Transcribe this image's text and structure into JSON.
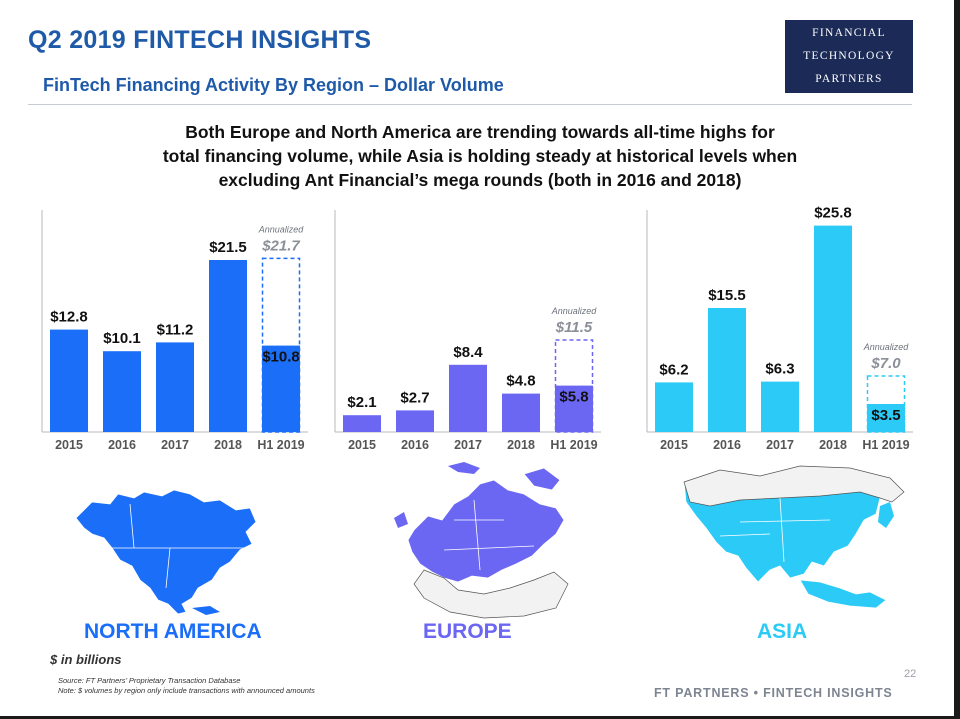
{
  "header": {
    "title": "Q2 2019 FINTECH INSIGHTS",
    "subtitle": "FinTech Financing Activity By Region – Dollar Volume",
    "logo_lines": [
      "FINANCIAL",
      "TECHNOLOGY",
      "PARTNERS"
    ]
  },
  "headline": {
    "line1": "Both Europe and North America are trending towards all-time highs for",
    "line2": "total financing volume, while Asia is holding steady at historical levels when",
    "line3": "excluding Ant Financial’s mega rounds (both in 2016 and 2018)"
  },
  "chart_data": [
    {
      "type": "bar",
      "region": "NORTH AMERICA",
      "color": "#1a6ef7",
      "categories": [
        "2015",
        "2016",
        "2017",
        "2018",
        "H1 2019"
      ],
      "values": [
        12.8,
        10.1,
        11.2,
        21.5,
        10.8
      ],
      "value_labels": [
        "$12.8",
        "$10.1",
        "$11.2",
        "$21.5",
        "$10.8"
      ],
      "annualized": {
        "label": "Annualized",
        "value": 21.7,
        "value_label": "$21.7"
      },
      "ylim": [
        0,
        26
      ]
    },
    {
      "type": "bar",
      "region": "EUROPE",
      "color": "#6b67f3",
      "categories": [
        "2015",
        "2016",
        "2017",
        "2018",
        "H1 2019"
      ],
      "values": [
        2.1,
        2.7,
        8.4,
        4.8,
        5.8
      ],
      "value_labels": [
        "$2.1",
        "$2.7",
        "$8.4",
        "$4.8",
        "$5.8"
      ],
      "annualized": {
        "label": "Annualized",
        "value": 11.5,
        "value_label": "$11.5"
      },
      "ylim": [
        0,
        26
      ]
    },
    {
      "type": "bar",
      "region": "ASIA",
      "color": "#2ccaf6",
      "categories": [
        "2015",
        "2016",
        "2017",
        "2018",
        "H1 2019"
      ],
      "values": [
        6.2,
        15.5,
        6.3,
        25.8,
        3.5
      ],
      "value_labels": [
        "$6.2",
        "$15.5",
        "$6.3",
        "$25.8",
        "$3.5"
      ],
      "annualized": {
        "label": "Annualized",
        "value": 7.0,
        "value_label": "$7.0"
      },
      "ylim": [
        0,
        26
      ]
    }
  ],
  "maps": {
    "north_america": "NORTH AMERICA",
    "europe": "EUROPE",
    "asia": "ASIA"
  },
  "colors": {
    "title_blue": "#1f5aa8",
    "north_america": "#1a6ef7",
    "europe": "#6b67f3",
    "asia": "#2ccaf6",
    "annualized_text": "#8a8f98",
    "logo_bg": "#1b2a56"
  },
  "footer": {
    "units": "$ in billions",
    "source_line1": "Source: FT Partners’ Proprietary Transaction Database",
    "source_line2": "Note: $ volumes by region only include transactions with announced amounts",
    "page_number": "22",
    "brand": "FT PARTNERS • FINTECH INSIGHTS"
  }
}
